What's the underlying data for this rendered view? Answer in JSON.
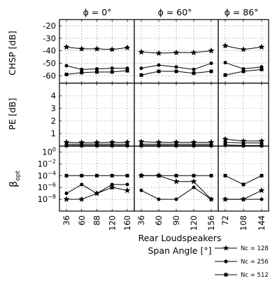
{
  "chart_data": [
    {
      "type": "line",
      "panel_rows": [
        "chsp",
        "pe",
        "beta"
      ],
      "columns": [
        {
          "title": "ϕ = 0°",
          "categories": [
            "36",
            "60",
            "88",
            "120",
            "160"
          ]
        },
        {
          "title": "ϕ = 60°",
          "categories": [
            "36",
            "60",
            "90",
            "120",
            "156"
          ]
        },
        {
          "title": "ϕ = 86°",
          "categories": [
            "72",
            "108",
            "144"
          ]
        }
      ],
      "xlabel_line1": "Rear Loudspeakers",
      "xlabel_line2": "Span Angle [°]",
      "legend": [
        {
          "label": "Nc = 128",
          "marker": "star"
        },
        {
          "label": "Nc = 256",
          "marker": "circle"
        },
        {
          "label": "Nc = 512",
          "marker": "square"
        }
      ],
      "grid": "dotted"
    },
    {
      "id": "chsp",
      "ylabel": "CHSP [dB]",
      "ylim": [
        -66,
        -15
      ],
      "yticks": [
        "-20",
        "-30",
        "-40",
        "-50",
        "-60"
      ],
      "ytick_values": [
        -20,
        -30,
        -40,
        -50,
        -60
      ],
      "series": [
        {
          "name": "Nc = 128",
          "marker": "star",
          "values": [
            [
              -37,
              -38.5,
              -38.5,
              -39,
              -37.5
            ],
            [
              -41,
              -42,
              -41.5,
              -41.5,
              -40
            ],
            [
              -36,
              -39,
              -37
            ]
          ]
        },
        {
          "name": "Nc = 256",
          "marker": "circle",
          "values": [
            [
              -52,
              -55,
              -54.5,
              -54,
              -54
            ],
            [
              -54,
              -51.5,
              -53,
              -55,
              -50
            ],
            [
              -49.5,
              -54.5,
              -53
            ]
          ]
        },
        {
          "name": "Nc = 512",
          "marker": "square",
          "values": [
            [
              -59,
              -57.5,
              -57,
              -57,
              -56
            ],
            [
              -59.5,
              -56.5,
              -56.5,
              -58,
              -56.5
            ],
            [
              -59.5,
              -56.5,
              -55
            ]
          ]
        }
      ]
    },
    {
      "id": "pe",
      "ylabel": "PE [dB]",
      "ylim": [
        0,
        5
      ],
      "yticks": [
        "4",
        "3",
        "2",
        "1"
      ],
      "ytick_values": [
        4,
        3,
        2,
        1
      ],
      "series": [
        {
          "name": "Nc = 128",
          "marker": "star",
          "values": [
            [
              0.3,
              0.28,
              0.28,
              0.3,
              0.3
            ],
            [
              0.35,
              0.3,
              0.3,
              0.3,
              0.3
            ],
            [
              0.55,
              0.4,
              0.4
            ]
          ]
        },
        {
          "name": "Nc = 256",
          "marker": "circle",
          "values": [
            [
              0.15,
              0.15,
              0.15,
              0.15,
              0.15
            ],
            [
              0.15,
              0.15,
              0.15,
              0.15,
              0.15
            ],
            [
              0.3,
              0.25,
              0.25
            ]
          ]
        },
        {
          "name": "Nc = 512",
          "marker": "square",
          "values": [
            [
              0.05,
              0.05,
              0.05,
              0.05,
              0.05
            ],
            [
              0.05,
              0.05,
              0.05,
              0.05,
              0.05
            ],
            [
              0.1,
              0.05,
              0.05
            ]
          ]
        }
      ]
    },
    {
      "id": "beta",
      "ylabel_main": "β",
      "ylabel_sub": "opt",
      "scale": "log",
      "ylim_exp": [
        -10,
        1
      ],
      "yticks": [
        {
          "mant": "10",
          "exp": "0",
          "e": 0
        },
        {
          "mant": "10",
          "exp": "−2",
          "e": -2
        },
        {
          "mant": "10",
          "exp": "−4",
          "e": -4
        },
        {
          "mant": "10",
          "exp": "−6",
          "e": -6
        },
        {
          "mant": "10",
          "exp": "−8",
          "e": -8
        }
      ],
      "series": [
        {
          "name": "Nc = 128",
          "marker": "star",
          "values_log10": [
            [
              -8,
              -8,
              -7,
              -6,
              -6.5
            ],
            [
              -4,
              -4,
              -5,
              -5,
              -8
            ],
            [
              -8,
              -8,
              -6.5
            ]
          ]
        },
        {
          "name": "Nc = 256",
          "marker": "circle",
          "values_log10": [
            [
              -7,
              -5.5,
              -7,
              -5.5,
              -5.5
            ],
            [
              -6.5,
              -8,
              -8,
              -6,
              -8
            ],
            [
              -8,
              -8,
              -8
            ]
          ]
        },
        {
          "name": "Nc = 512",
          "marker": "square",
          "values_log10": [
            [
              -4,
              -4,
              -4,
              -4,
              -4
            ],
            [
              -4,
              -4,
              -4,
              -4,
              -4
            ],
            [
              -4,
              -5.5,
              -4
            ]
          ]
        }
      ]
    }
  ]
}
